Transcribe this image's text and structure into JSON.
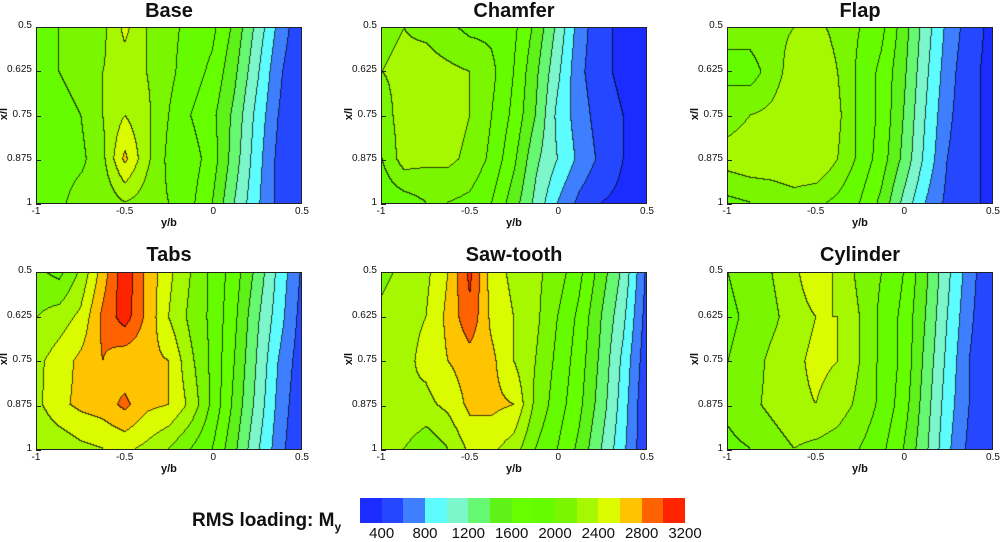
{
  "chart_data": {
    "type": "heatmap",
    "subtype": "filled-contour",
    "layout": "2x3 grid of panels",
    "colorbar": {
      "title": "RMS loading: M",
      "title_subscript": "y",
      "levels": [
        200,
        400,
        600,
        800,
        1000,
        1200,
        1400,
        1600,
        1800,
        2000,
        2200,
        2400,
        2600,
        2800,
        3000,
        3200
      ],
      "tick_labels": [
        "400",
        "800",
        "1200",
        "1600",
        "2000",
        "2400",
        "2800",
        "3200"
      ],
      "tick_values": [
        400,
        800,
        1200,
        1600,
        2000,
        2400,
        2800,
        3200
      ],
      "colors": [
        "#1a2cff",
        "#2447ff",
        "#3d7fff",
        "#5cfcff",
        "#7cf7cc",
        "#66f870",
        "#5ef219",
        "#66ff00",
        "#66fc00",
        "#7af700",
        "#a6f800",
        "#dbfb00",
        "#ffc400",
        "#ff6200",
        "#ff2400",
        "#ff0000"
      ]
    },
    "x_axis": {
      "label": "y/b",
      "range": [
        -1,
        0.5
      ],
      "ticks": [
        -1,
        -0.5,
        0,
        0.5
      ],
      "tick_labels": [
        "-1",
        "-0.5",
        "0",
        "0.5"
      ]
    },
    "y_axis": {
      "label": "x/l",
      "range": [
        0.5,
        1
      ],
      "inverted": true,
      "ticks": [
        0.5,
        0.625,
        0.75,
        0.875,
        1
      ],
      "tick_labels": [
        "0.5",
        "0.625",
        "0.75",
        "0.875",
        "1"
      ]
    },
    "grid_x": [
      -1,
      -0.875,
      -0.75,
      -0.625,
      -0.5,
      -0.375,
      -0.25,
      -0.125,
      0,
      0.125,
      0.25,
      0.375,
      0.5
    ],
    "grid_y": [
      0.5,
      0.625,
      0.75,
      0.875,
      1
    ],
    "panels": [
      {
        "title": "Base",
        "values": [
          [
            1900,
            2000,
            2050,
            2150,
            2450,
            2200,
            2050,
            1950,
            1850,
            1550,
            1150,
            750,
            450
          ],
          [
            1850,
            2000,
            2100,
            2200,
            2300,
            2200,
            2050,
            1900,
            1750,
            1450,
            1050,
            650,
            400
          ],
          [
            1800,
            1900,
            2000,
            2200,
            2400,
            2250,
            2000,
            1800,
            1650,
            1350,
            950,
            600,
            400
          ],
          [
            2000,
            1900,
            1950,
            2150,
            2650,
            2250,
            1950,
            1900,
            1700,
            1300,
            900,
            550,
            400
          ],
          [
            1900,
            1950,
            2100,
            2050,
            2200,
            2100,
            2000,
            1850,
            1600,
            1200,
            850,
            550,
            400
          ]
        ]
      },
      {
        "title": "Chamfer",
        "values": [
          [
            2150,
            2200,
            2150,
            2050,
            1950,
            1950,
            1850,
            1550,
            1150,
            700,
            450,
            350,
            300
          ],
          [
            2200,
            2250,
            2300,
            2250,
            2200,
            2050,
            1800,
            1450,
            1050,
            650,
            450,
            350,
            300
          ],
          [
            2100,
            2300,
            2350,
            2300,
            2200,
            2000,
            1750,
            1400,
            950,
            700,
            500,
            400,
            300
          ],
          [
            2000,
            2300,
            2250,
            2250,
            2150,
            1950,
            1650,
            1250,
            1000,
            750,
            550,
            400,
            300
          ],
          [
            1850,
            1900,
            2000,
            2000,
            1950,
            1800,
            1500,
            1150,
            800,
            550,
            400,
            350,
            300
          ]
        ]
      },
      {
        "title": "Flap",
        "values": [
          [
            2050,
            2100,
            2150,
            2200,
            2250,
            2150,
            2000,
            1850,
            1500,
            1100,
            750,
            500,
            350
          ],
          [
            1950,
            1900,
            2100,
            2300,
            2350,
            2200,
            1950,
            1750,
            1450,
            1050,
            700,
            450,
            350
          ],
          [
            2100,
            2200,
            2250,
            2350,
            2400,
            2250,
            1950,
            1750,
            1400,
            1000,
            650,
            450,
            350
          ],
          [
            2300,
            2350,
            2350,
            2400,
            2400,
            2200,
            1950,
            1700,
            1350,
            950,
            600,
            450,
            350
          ],
          [
            1950,
            2000,
            2050,
            2100,
            2050,
            1950,
            1800,
            1550,
            1150,
            800,
            550,
            450,
            350
          ]
        ]
      },
      {
        "title": "Tabs",
        "values": [
          [
            2050,
            1950,
            2250,
            2700,
            3150,
            2750,
            2450,
            2200,
            1950,
            1700,
            1350,
            950,
            600
          ],
          [
            2200,
            2300,
            2450,
            2850,
            3100,
            2750,
            2400,
            2150,
            1950,
            1650,
            1250,
            900,
            550
          ],
          [
            2350,
            2500,
            2650,
            2800,
            2650,
            2650,
            2600,
            2250,
            1950,
            1600,
            1200,
            800,
            500
          ],
          [
            2350,
            2550,
            2650,
            2700,
            2850,
            2650,
            2600,
            2350,
            1950,
            1550,
            1150,
            750,
            450
          ],
          [
            2200,
            2250,
            2350,
            2400,
            2450,
            2350,
            2200,
            2000,
            1800,
            1450,
            1050,
            700,
            400
          ]
        ]
      },
      {
        "title": "Saw-tooth",
        "values": [
          [
            2150,
            2250,
            2350,
            2600,
            3050,
            2500,
            2350,
            2250,
            2100,
            1850,
            1500,
            1150,
            600
          ],
          [
            2250,
            2350,
            2400,
            2650,
            2950,
            2550,
            2400,
            2250,
            2000,
            1750,
            1400,
            1050,
            550
          ],
          [
            2300,
            2350,
            2450,
            2600,
            2700,
            2650,
            2400,
            2200,
            1950,
            1700,
            1350,
            950,
            500
          ],
          [
            2350,
            2400,
            2350,
            2450,
            2650,
            2650,
            2600,
            2150,
            1900,
            1650,
            1300,
            900,
            450
          ],
          [
            2250,
            2200,
            2050,
            2200,
            2450,
            2450,
            2300,
            2000,
            1800,
            1550,
            1200,
            850,
            450
          ]
        ]
      },
      {
        "title": "Cylinder",
        "values": [
          [
            2000,
            2100,
            2200,
            2350,
            2550,
            2350,
            2150,
            2000,
            1800,
            1450,
            1050,
            700,
            400
          ],
          [
            1950,
            2050,
            2150,
            2300,
            2400,
            2400,
            2200,
            1950,
            1750,
            1400,
            1000,
            650,
            400
          ],
          [
            2000,
            2100,
            2250,
            2350,
            2450,
            2400,
            2200,
            1950,
            1750,
            1350,
            950,
            600,
            400
          ],
          [
            2050,
            2150,
            2250,
            2350,
            2400,
            2300,
            2150,
            1950,
            1700,
            1300,
            900,
            600,
            400
          ],
          [
            1950,
            2000,
            2100,
            2200,
            2150,
            2100,
            2000,
            1850,
            1600,
            1250,
            850,
            550,
            400
          ]
        ]
      }
    ]
  },
  "legend": {
    "title": "RMS loading: M",
    "subscript": "y"
  }
}
